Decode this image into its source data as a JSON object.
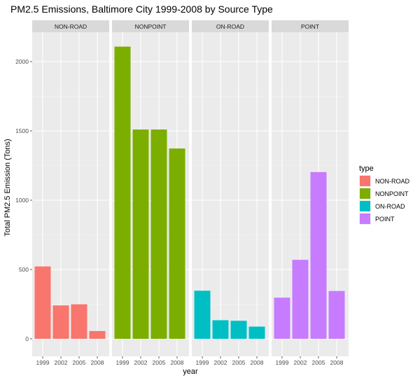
{
  "chart_data": {
    "type": "bar",
    "title": "PM2.5 Emissions, Baltimore City 1999-2008 by Source Type",
    "xlabel": "year",
    "ylabel": "Total PM2.5 Emission (Tons)",
    "ylim": [
      0,
      2200
    ],
    "yticks": [
      0,
      500,
      1000,
      1500,
      2000
    ],
    "categories": [
      "1999",
      "2002",
      "2005",
      "2008"
    ],
    "grid": true,
    "legend_placement": "right",
    "legend_title": "type",
    "facets": [
      {
        "name": "NON-ROAD",
        "color": "#F8766D",
        "values": [
          522,
          241,
          249,
          56
        ]
      },
      {
        "name": "NONPOINT",
        "color": "#7CAE00",
        "values": [
          2108,
          1510,
          1510,
          1373
        ]
      },
      {
        "name": "ON-ROAD",
        "color": "#00BFC4",
        "values": [
          347,
          134,
          130,
          88
        ]
      },
      {
        "name": "POINT",
        "color": "#C77CFF",
        "values": [
          297,
          570,
          1203,
          345
        ]
      }
    ]
  }
}
